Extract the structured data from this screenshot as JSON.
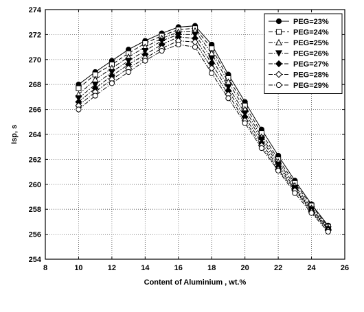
{
  "chart_data": {
    "type": "line",
    "title": "",
    "xlabel": "Content of Aluminium , wt.%",
    "ylabel": "Isp, s",
    "xlim": [
      8,
      26
    ],
    "ylim": [
      254,
      274
    ],
    "xticks": [
      8,
      10,
      12,
      14,
      16,
      18,
      20,
      22,
      24,
      26
    ],
    "yticks": [
      254,
      256,
      258,
      260,
      262,
      264,
      266,
      268,
      270,
      272,
      274
    ],
    "grid": true,
    "legend_position": "top-right",
    "x": [
      10,
      11,
      12,
      13,
      14,
      15,
      16,
      17,
      18,
      19,
      20,
      21,
      22,
      23,
      24,
      25
    ],
    "series": [
      {
        "name": "PEG=23%",
        "marker": "filled-circle",
        "dash": "solid",
        "values": [
          268.0,
          269.0,
          269.9,
          270.8,
          271.5,
          272.1,
          272.6,
          272.7,
          271.2,
          268.8,
          266.6,
          264.4,
          262.3,
          260.3,
          258.4,
          256.7
        ]
      },
      {
        "name": "PEG=24%",
        "marker": "open-square",
        "dash": "dash",
        "values": [
          267.7,
          268.8,
          269.6,
          270.5,
          271.3,
          271.9,
          272.4,
          272.5,
          270.9,
          268.5,
          266.3,
          264.1,
          262.0,
          260.1,
          258.3,
          256.6
        ]
      },
      {
        "name": "PEG=25%",
        "marker": "open-triangle",
        "dash": "dashdot",
        "values": [
          267.2,
          268.4,
          269.3,
          270.2,
          271.0,
          271.7,
          272.2,
          272.3,
          270.5,
          268.2,
          266.0,
          263.8,
          261.8,
          259.9,
          258.1,
          256.5
        ]
      },
      {
        "name": "PEG=26%",
        "marker": "filled-triangle-down",
        "dash": "dashdot",
        "values": [
          266.9,
          268.0,
          269.0,
          269.9,
          270.7,
          271.5,
          272.0,
          272.0,
          270.1,
          267.8,
          265.7,
          263.6,
          261.6,
          259.7,
          258.0,
          256.4
        ]
      },
      {
        "name": "PEG=27%",
        "marker": "filled-diamond",
        "dash": "dashdot",
        "values": [
          266.6,
          267.7,
          268.7,
          269.6,
          270.4,
          271.2,
          271.8,
          271.7,
          269.7,
          267.5,
          265.4,
          263.3,
          261.4,
          259.6,
          257.9,
          256.4
        ]
      },
      {
        "name": "PEG=28%",
        "marker": "open-diamond",
        "dash": "dashdot",
        "values": [
          266.3,
          267.4,
          268.4,
          269.3,
          270.1,
          270.9,
          271.5,
          271.4,
          269.3,
          267.2,
          265.1,
          263.1,
          261.2,
          259.5,
          257.8,
          256.3
        ]
      },
      {
        "name": "PEG=29%",
        "marker": "open-circle",
        "dash": "dashdot",
        "values": [
          266.0,
          267.1,
          268.1,
          269.0,
          269.9,
          270.7,
          271.2,
          271.0,
          268.9,
          266.9,
          264.9,
          262.9,
          261.1,
          259.3,
          257.7,
          256.2
        ]
      }
    ]
  }
}
